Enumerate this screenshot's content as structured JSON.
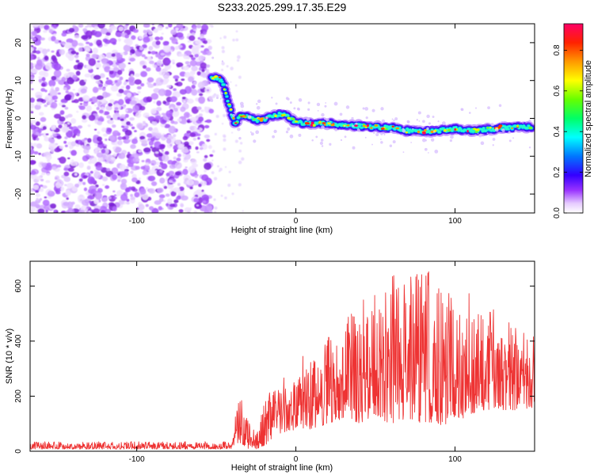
{
  "title": "S233.2025.299.17.35.E29",
  "chart_data": [
    {
      "type": "heatmap",
      "xlabel": "Height of straight line (km)",
      "ylabel": "Frequency (Hz)",
      "xlim": [
        -167,
        150
      ],
      "ylim": [
        -25,
        25
      ],
      "xticks": [
        -100,
        0,
        100
      ],
      "xtick_labels": [
        "-100",
        "0",
        "100"
      ],
      "yticks": [
        -20,
        -10,
        0,
        10,
        20
      ],
      "ytick_labels": [
        "-20",
        "-10",
        "0",
        "10",
        "20"
      ],
      "noise_region_x": [
        -167,
        -53
      ],
      "ridge_x": [
        -53,
        -50,
        -46,
        -44,
        -42,
        -40,
        -38,
        -35,
        -30,
        -25,
        -20,
        -15,
        -10,
        -5,
        0,
        10,
        20,
        30,
        40,
        50,
        60,
        70,
        80,
        90,
        100,
        110,
        120,
        130,
        140,
        148
      ],
      "ridge_frequency_hz": [
        10.5,
        11,
        9.5,
        7,
        3.5,
        0.5,
        -1.5,
        0.5,
        0.5,
        -0.5,
        -0.3,
        0.5,
        1.0,
        0.5,
        -1.0,
        -1.5,
        -1.3,
        -1.8,
        -2.0,
        -2.3,
        -2.5,
        -3.2,
        -3.5,
        -3.2,
        -2.8,
        -3.2,
        -3.0,
        -2.5,
        -2.3,
        -2.2
      ],
      "colorbar": {
        "label": "Normalized spectral amplitude",
        "range": [
          0,
          0.93
        ],
        "ticks": [
          0,
          0.2,
          0.4,
          0.6,
          0.8
        ],
        "tick_labels": [
          "0.0",
          "0.2",
          "0.4",
          "0.6",
          "0.8"
        ]
      }
    },
    {
      "type": "line",
      "xlabel": "Height of straight line (km)",
      "ylabel": "SNR (10 * v/v)",
      "xlim": [
        -167,
        150
      ],
      "ylim": [
        0,
        690
      ],
      "xticks": [
        -100,
        0,
        100
      ],
      "xtick_labels": [
        "-100",
        "0",
        "100"
      ],
      "yticks": [
        0,
        200,
        400,
        600
      ],
      "ytick_labels": [
        "0",
        "200",
        "400",
        "600"
      ],
      "series_color": "#ee3333",
      "envelope_x": [
        -167,
        -40,
        -38,
        -35,
        -30,
        -25,
        -20,
        -10,
        0,
        10,
        20,
        30,
        40,
        50,
        60,
        70,
        80,
        90,
        100,
        110,
        120,
        130,
        140,
        150
      ],
      "envelope_min": [
        8,
        8,
        20,
        30,
        10,
        8,
        20,
        60,
        80,
        80,
        100,
        120,
        100,
        120,
        100,
        120,
        100,
        90,
        110,
        130,
        150,
        150,
        150,
        160
      ],
      "envelope_max": [
        35,
        35,
        130,
        200,
        120,
        60,
        200,
        260,
        330,
        370,
        420,
        480,
        560,
        600,
        640,
        640,
        660,
        640,
        560,
        580,
        560,
        520,
        460,
        440
      ]
    }
  ]
}
